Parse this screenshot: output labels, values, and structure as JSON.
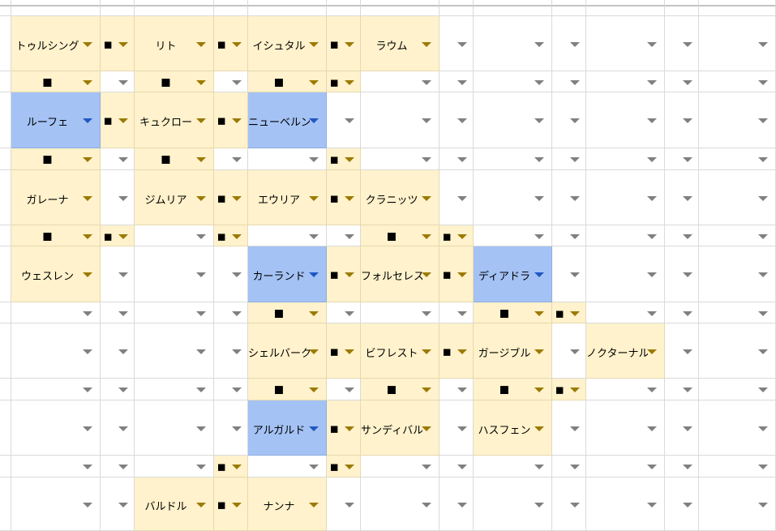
{
  "colors": {
    "yellow": "#fff2cc",
    "blue": "#a4c2f4",
    "white": "#ffffff",
    "arrow_gray": "#808080",
    "arrow_gold": "#9c7a00",
    "arrow_blue": "#1f57c3"
  },
  "icons": {
    "dropdown": "triangle-down-icon"
  },
  "grid": {
    "rows": [
      {
        "cells": [
          {
            "fill": "y",
            "text": "トゥルシング"
          },
          {
            "fill": "y",
            "text": "■"
          },
          {
            "fill": "y",
            "text": "リト"
          },
          {
            "fill": "y",
            "text": "■"
          },
          {
            "fill": "y",
            "text": "イシュタル"
          },
          {
            "fill": "y",
            "text": "■"
          },
          {
            "fill": "y",
            "text": "ラウム"
          },
          {
            "fill": "w",
            "text": ""
          },
          {
            "fill": "w",
            "text": ""
          },
          {
            "fill": "w",
            "text": ""
          },
          {
            "fill": "w",
            "text": ""
          },
          {
            "fill": "w",
            "text": ""
          },
          {
            "fill": "w",
            "text": ""
          }
        ]
      },
      {
        "cells": [
          {
            "fill": "y",
            "text": "■"
          },
          {
            "fill": "w",
            "text": ""
          },
          {
            "fill": "y",
            "text": "■"
          },
          {
            "fill": "w",
            "text": ""
          },
          {
            "fill": "y",
            "text": "■"
          },
          {
            "fill": "y",
            "text": "■"
          },
          {
            "fill": "w",
            "text": ""
          },
          {
            "fill": "w",
            "text": ""
          },
          {
            "fill": "w",
            "text": ""
          },
          {
            "fill": "w",
            "text": ""
          },
          {
            "fill": "w",
            "text": ""
          },
          {
            "fill": "w",
            "text": ""
          },
          {
            "fill": "w",
            "text": ""
          }
        ]
      },
      {
        "cells": [
          {
            "fill": "b",
            "text": "ルーフェ"
          },
          {
            "fill": "y",
            "text": "■"
          },
          {
            "fill": "y",
            "text": "キュクロー"
          },
          {
            "fill": "y",
            "text": "■"
          },
          {
            "fill": "b",
            "text": "ニューベルン"
          },
          {
            "fill": "w",
            "text": ""
          },
          {
            "fill": "w",
            "text": ""
          },
          {
            "fill": "w",
            "text": ""
          },
          {
            "fill": "w",
            "text": ""
          },
          {
            "fill": "w",
            "text": ""
          },
          {
            "fill": "w",
            "text": ""
          },
          {
            "fill": "w",
            "text": ""
          },
          {
            "fill": "w",
            "text": ""
          }
        ]
      },
      {
        "cells": [
          {
            "fill": "y",
            "text": "■"
          },
          {
            "fill": "w",
            "text": ""
          },
          {
            "fill": "y",
            "text": "■"
          },
          {
            "fill": "w",
            "text": ""
          },
          {
            "fill": "w",
            "text": ""
          },
          {
            "fill": "y",
            "text": "■"
          },
          {
            "fill": "w",
            "text": ""
          },
          {
            "fill": "w",
            "text": ""
          },
          {
            "fill": "w",
            "text": ""
          },
          {
            "fill": "w",
            "text": ""
          },
          {
            "fill": "w",
            "text": ""
          },
          {
            "fill": "w",
            "text": ""
          },
          {
            "fill": "w",
            "text": ""
          }
        ]
      },
      {
        "cells": [
          {
            "fill": "y",
            "text": "ガレーナ"
          },
          {
            "fill": "w",
            "text": ""
          },
          {
            "fill": "y",
            "text": "ジムリア"
          },
          {
            "fill": "y",
            "text": "■"
          },
          {
            "fill": "y",
            "text": "エウリア"
          },
          {
            "fill": "y",
            "text": "■"
          },
          {
            "fill": "y",
            "text": "クラニッツ"
          },
          {
            "fill": "w",
            "text": ""
          },
          {
            "fill": "w",
            "text": ""
          },
          {
            "fill": "w",
            "text": ""
          },
          {
            "fill": "w",
            "text": ""
          },
          {
            "fill": "w",
            "text": ""
          },
          {
            "fill": "w",
            "text": ""
          }
        ]
      },
      {
        "cells": [
          {
            "fill": "y",
            "text": "■"
          },
          {
            "fill": "y",
            "text": "■"
          },
          {
            "fill": "w",
            "text": ""
          },
          {
            "fill": "y",
            "text": "■"
          },
          {
            "fill": "w",
            "text": ""
          },
          {
            "fill": "w",
            "text": ""
          },
          {
            "fill": "y",
            "text": "■"
          },
          {
            "fill": "y",
            "text": "■"
          },
          {
            "fill": "w",
            "text": ""
          },
          {
            "fill": "w",
            "text": ""
          },
          {
            "fill": "w",
            "text": ""
          },
          {
            "fill": "w",
            "text": ""
          },
          {
            "fill": "w",
            "text": ""
          }
        ]
      },
      {
        "cells": [
          {
            "fill": "y",
            "text": "ウェスレン"
          },
          {
            "fill": "w",
            "text": ""
          },
          {
            "fill": "w",
            "text": ""
          },
          {
            "fill": "w",
            "text": ""
          },
          {
            "fill": "b",
            "text": "カーランド"
          },
          {
            "fill": "y",
            "text": "■"
          },
          {
            "fill": "y",
            "text": "フォルセレス"
          },
          {
            "fill": "y",
            "text": "■"
          },
          {
            "fill": "b",
            "text": "ディアドラ"
          },
          {
            "fill": "w",
            "text": ""
          },
          {
            "fill": "w",
            "text": ""
          },
          {
            "fill": "w",
            "text": ""
          },
          {
            "fill": "w",
            "text": ""
          }
        ]
      },
      {
        "cells": [
          {
            "fill": "w",
            "text": ""
          },
          {
            "fill": "w",
            "text": ""
          },
          {
            "fill": "w",
            "text": ""
          },
          {
            "fill": "w",
            "text": ""
          },
          {
            "fill": "y",
            "text": "■"
          },
          {
            "fill": "w",
            "text": ""
          },
          {
            "fill": "w",
            "text": ""
          },
          {
            "fill": "w",
            "text": ""
          },
          {
            "fill": "y",
            "text": "■"
          },
          {
            "fill": "y",
            "text": "■"
          },
          {
            "fill": "w",
            "text": ""
          },
          {
            "fill": "w",
            "text": ""
          },
          {
            "fill": "w",
            "text": ""
          }
        ]
      },
      {
        "cells": [
          {
            "fill": "w",
            "text": ""
          },
          {
            "fill": "w",
            "text": ""
          },
          {
            "fill": "w",
            "text": ""
          },
          {
            "fill": "w",
            "text": ""
          },
          {
            "fill": "y",
            "text": "シェルバーク"
          },
          {
            "fill": "y",
            "text": "■"
          },
          {
            "fill": "y",
            "text": "ビフレスト"
          },
          {
            "fill": "y",
            "text": "■"
          },
          {
            "fill": "y",
            "text": "ガージブル"
          },
          {
            "fill": "w",
            "text": ""
          },
          {
            "fill": "y",
            "text": "ノクターナル"
          },
          {
            "fill": "w",
            "text": ""
          },
          {
            "fill": "w",
            "text": ""
          }
        ]
      },
      {
        "cells": [
          {
            "fill": "w",
            "text": ""
          },
          {
            "fill": "w",
            "text": ""
          },
          {
            "fill": "w",
            "text": ""
          },
          {
            "fill": "w",
            "text": ""
          },
          {
            "fill": "y",
            "text": "■"
          },
          {
            "fill": "w",
            "text": ""
          },
          {
            "fill": "y",
            "text": "■"
          },
          {
            "fill": "w",
            "text": ""
          },
          {
            "fill": "y",
            "text": "■"
          },
          {
            "fill": "y",
            "text": "■"
          },
          {
            "fill": "w",
            "text": ""
          },
          {
            "fill": "w",
            "text": ""
          },
          {
            "fill": "w",
            "text": ""
          }
        ]
      },
      {
        "cells": [
          {
            "fill": "w",
            "text": ""
          },
          {
            "fill": "w",
            "text": ""
          },
          {
            "fill": "w",
            "text": ""
          },
          {
            "fill": "w",
            "text": ""
          },
          {
            "fill": "b",
            "text": "アルガルド"
          },
          {
            "fill": "y",
            "text": "■"
          },
          {
            "fill": "y",
            "text": "サンディバル"
          },
          {
            "fill": "w",
            "text": ""
          },
          {
            "fill": "y",
            "text": "ハスフェン"
          },
          {
            "fill": "w",
            "text": ""
          },
          {
            "fill": "w",
            "text": ""
          },
          {
            "fill": "w",
            "text": ""
          },
          {
            "fill": "w",
            "text": ""
          }
        ]
      },
      {
        "cells": [
          {
            "fill": "w",
            "text": ""
          },
          {
            "fill": "w",
            "text": ""
          },
          {
            "fill": "w",
            "text": ""
          },
          {
            "fill": "y",
            "text": "■"
          },
          {
            "fill": "w",
            "text": ""
          },
          {
            "fill": "y",
            "text": "■"
          },
          {
            "fill": "w",
            "text": ""
          },
          {
            "fill": "w",
            "text": ""
          },
          {
            "fill": "w",
            "text": ""
          },
          {
            "fill": "w",
            "text": ""
          },
          {
            "fill": "w",
            "text": ""
          },
          {
            "fill": "w",
            "text": ""
          },
          {
            "fill": "w",
            "text": ""
          }
        ]
      },
      {
        "cells": [
          {
            "fill": "w",
            "text": ""
          },
          {
            "fill": "w",
            "text": ""
          },
          {
            "fill": "y",
            "text": "バルドル"
          },
          {
            "fill": "y",
            "text": "■"
          },
          {
            "fill": "y",
            "text": "ナンナ"
          },
          {
            "fill": "w",
            "text": ""
          },
          {
            "fill": "w",
            "text": ""
          },
          {
            "fill": "w",
            "text": ""
          },
          {
            "fill": "w",
            "text": ""
          },
          {
            "fill": "w",
            "text": ""
          },
          {
            "fill": "w",
            "text": ""
          },
          {
            "fill": "w",
            "text": ""
          },
          {
            "fill": "w",
            "text": ""
          }
        ]
      }
    ]
  }
}
